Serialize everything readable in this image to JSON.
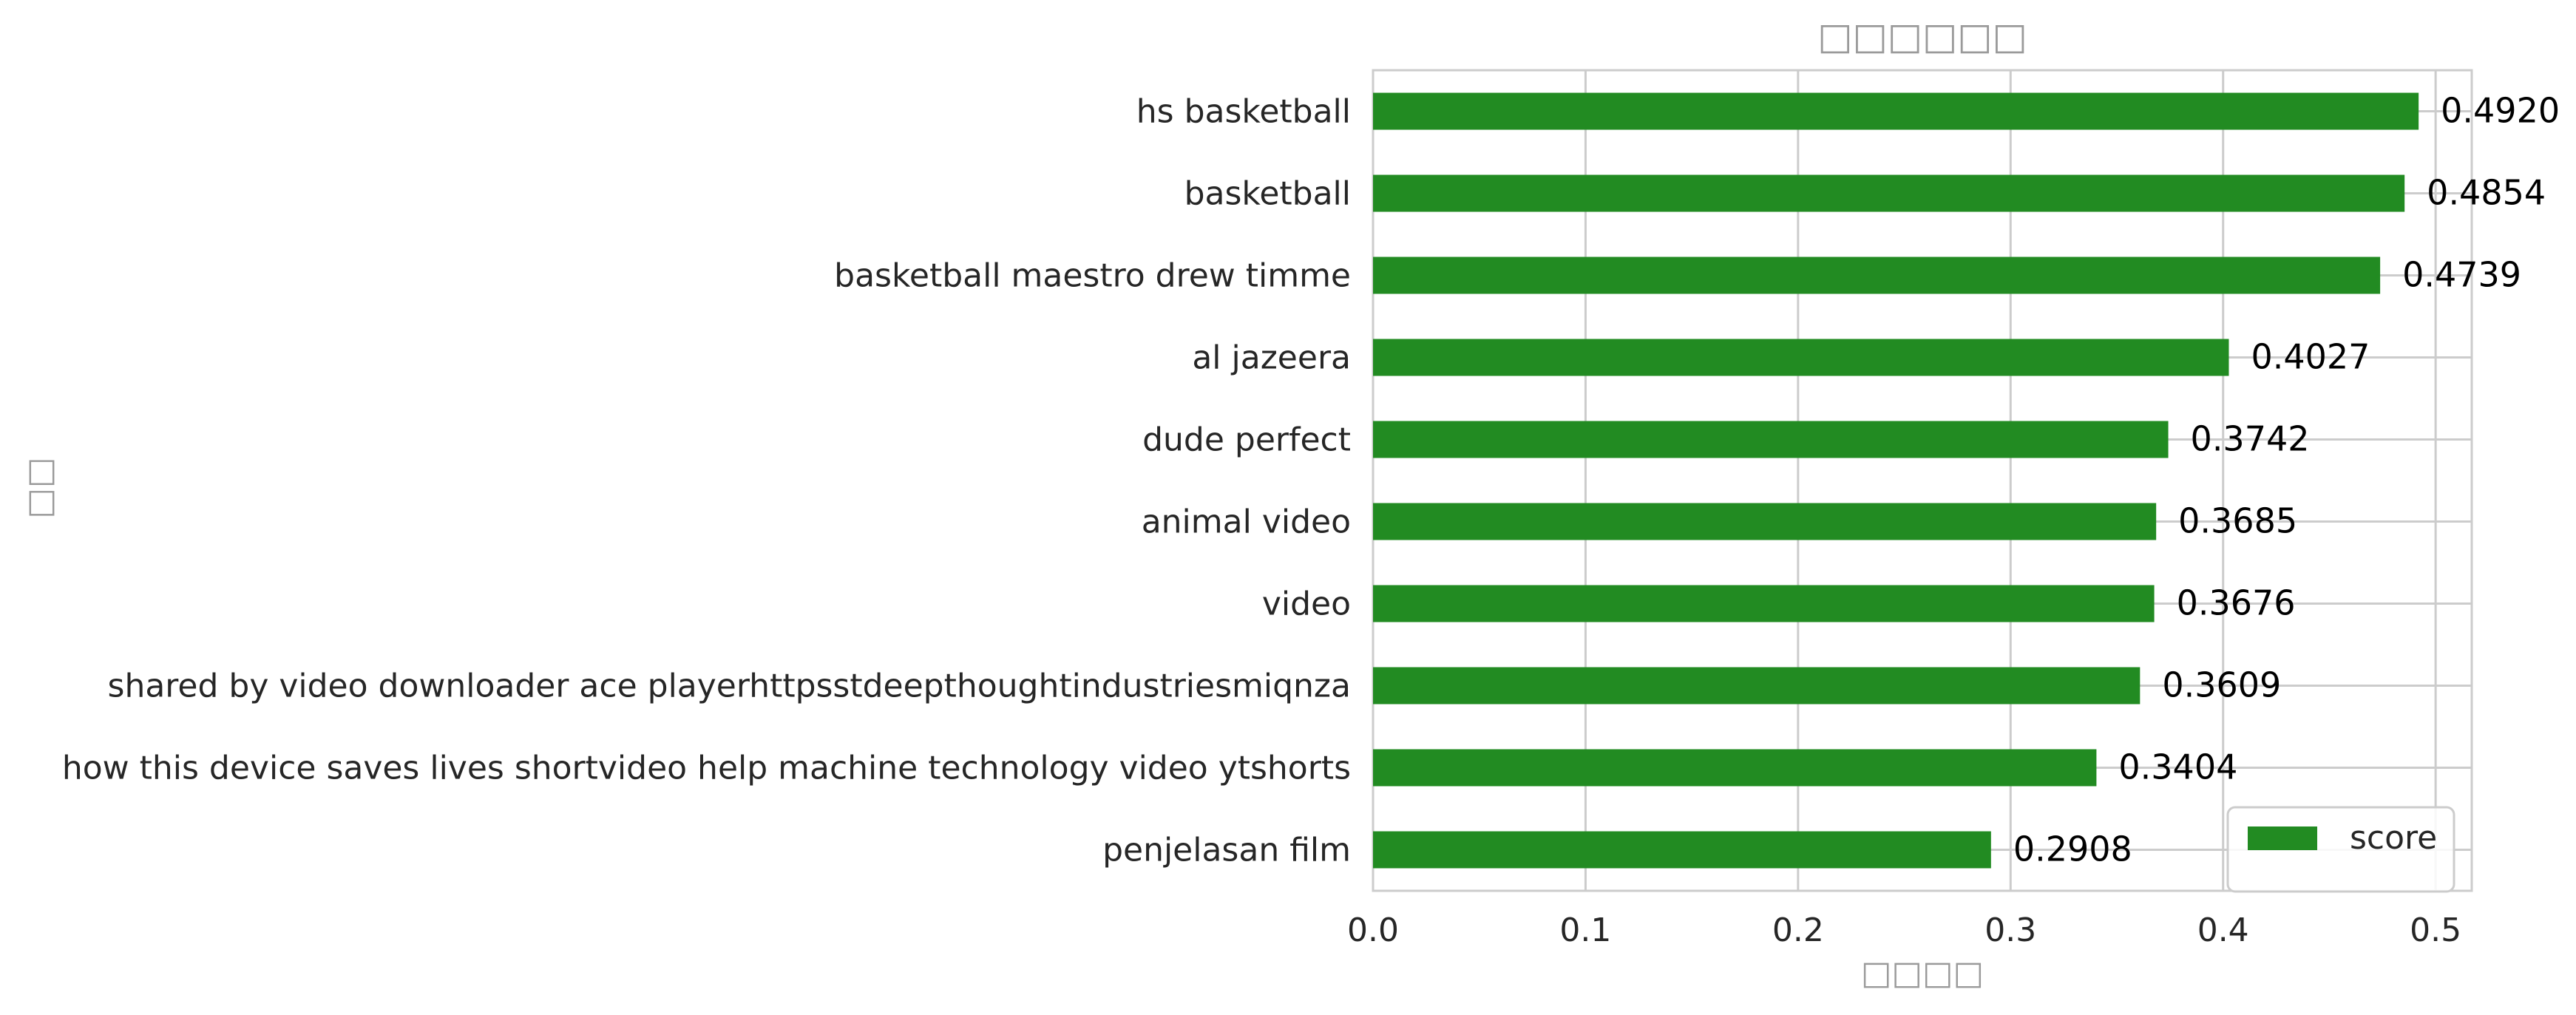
{
  "chart_data": {
    "type": "bar",
    "orientation": "horizontal",
    "title": "□□□□□□",
    "xlabel": "□□□□",
    "ylabel": "□□",
    "categories": [
      "hs basketball",
      "basketball",
      "basketball maestro drew timme",
      "al jazeera",
      "dude perfect",
      "animal video",
      "video",
      "shared by video downloader  ace playerhttpsstdeepthoughtindustriesmiqnza",
      "how this device saves lives shortvideo help machine technology video ytshorts",
      "penjelasan film"
    ],
    "series": [
      {
        "name": "score",
        "color": "#228B22",
        "values": [
          0.492,
          0.4854,
          0.4739,
          0.4027,
          0.3742,
          0.3685,
          0.3676,
          0.3609,
          0.3404,
          0.2908
        ],
        "labels": [
          "0.4920",
          "0.4854",
          "0.4739",
          "0.4027",
          "0.3742",
          "0.3685",
          "0.3676",
          "0.3609",
          "0.3404",
          "0.2908"
        ]
      }
    ],
    "xlim": [
      0,
      0.517
    ],
    "xticks": [
      "0.0",
      "0.1",
      "0.2",
      "0.3",
      "0.4",
      "0.5"
    ],
    "grid": true,
    "legend_position": "lower-right"
  }
}
